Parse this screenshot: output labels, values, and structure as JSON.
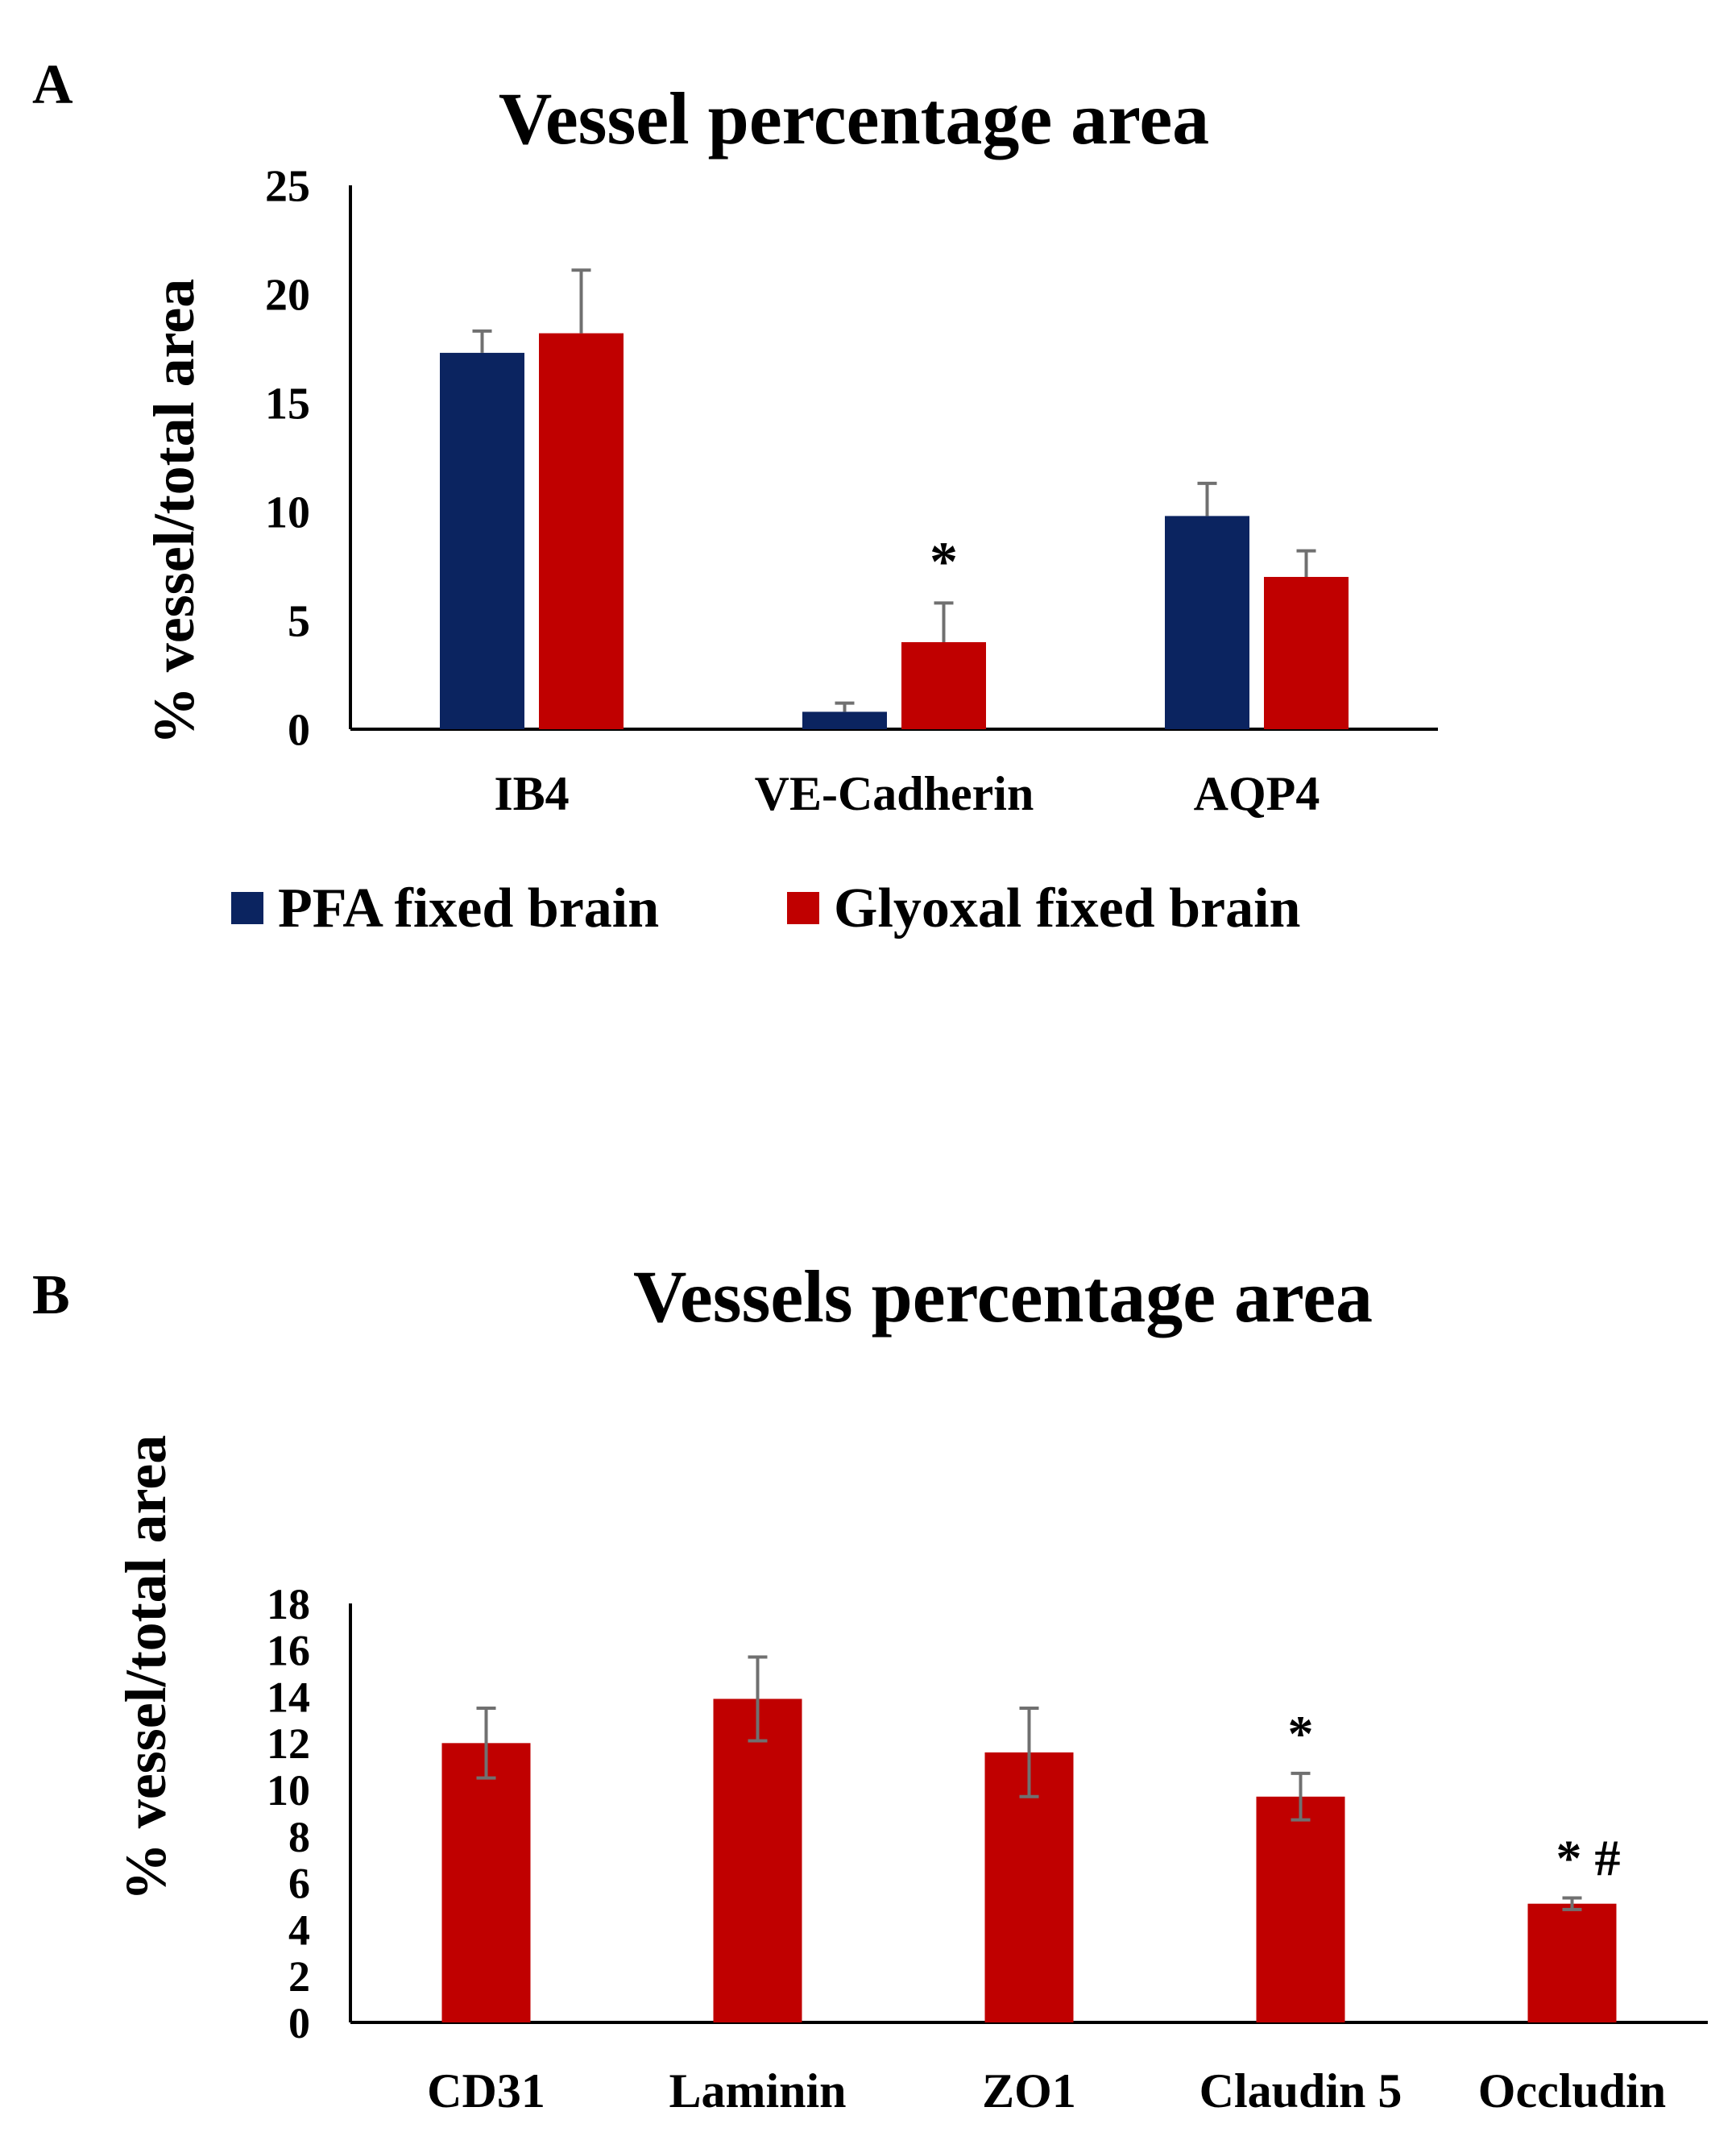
{
  "colors": {
    "pfa": "#0b2460",
    "glyoxal": "#c00000",
    "error": "#707070",
    "axis": "#000000"
  },
  "chart_data": [
    {
      "panel_label": "A",
      "type": "bar",
      "title": "Vessel percentage area",
      "ylabel": "% vessel/total area",
      "xlabel": "",
      "ylim": [
        0,
        25
      ],
      "yticks": [
        "0",
        "5",
        "10",
        "15",
        "20",
        "25"
      ],
      "categories": [
        "IB4",
        "VE-Cadherin",
        "AQP4"
      ],
      "series": [
        {
          "name": "PFA fixed brain",
          "color_key": "pfa",
          "values": [
            17.3,
            0.8,
            9.8
          ],
          "errors": [
            1.0,
            0.4,
            1.5
          ]
        },
        {
          "name": "Glyoxal fixed brain",
          "color_key": "glyoxal",
          "values": [
            18.2,
            4.0,
            7.0
          ],
          "errors": [
            2.9,
            1.8,
            1.2
          ]
        }
      ],
      "annotations": [
        {
          "text": "*",
          "category": 1,
          "series": 1
        }
      ],
      "legend": "bottom"
    },
    {
      "panel_label": "B",
      "type": "bar",
      "title": "Vessels percentage area",
      "ylabel": "% vessel/total area",
      "xlabel": "",
      "ylim": [
        0,
        18
      ],
      "yticks": [
        "0",
        "2",
        "4",
        "6",
        "8",
        "10",
        "12",
        "14",
        "16",
        "18"
      ],
      "categories": [
        "CD31",
        "Laminin",
        "ZO1",
        "Claudin 5",
        "Occludin"
      ],
      "series": [
        {
          "name": "Glyoxal fixed brain",
          "color_key": "glyoxal",
          "values": [
            12.0,
            13.9,
            11.6,
            9.7,
            5.1
          ],
          "errors": [
            1.5,
            1.8,
            1.9,
            1.0,
            0.25
          ]
        }
      ],
      "annotations": [
        {
          "text": "*",
          "category": 3,
          "series": 0
        },
        {
          "text": "* #",
          "category": 4,
          "series": 0
        }
      ]
    }
  ]
}
